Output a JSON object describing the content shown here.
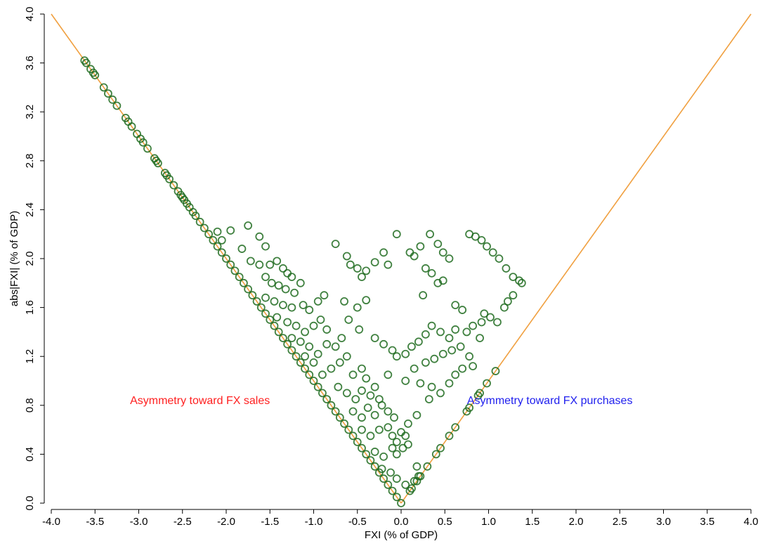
{
  "chart_data": {
    "type": "scatter",
    "xlabel": "FXI (% of GDP)",
    "ylabel": "abs|FXI| (% of GDP)",
    "xlim": [
      -4.0,
      4.0
    ],
    "ylim": [
      0.0,
      4.0
    ],
    "x_ticks": [
      "-4.0",
      "-3.5",
      "-3.0",
      "-2.5",
      "-2.0",
      "-1.5",
      "-1.0",
      "-0.5",
      "0.0",
      "0.5",
      "1.0",
      "1.5",
      "2.0",
      "2.5",
      "3.0",
      "3.5",
      "4.0"
    ],
    "y_ticks": [
      "0.0",
      "0.4",
      "0.8",
      "1.2",
      "1.6",
      "2.0",
      "2.4",
      "2.8",
      "3.2",
      "3.6",
      "4.0"
    ],
    "grid": false,
    "legend": "none",
    "marker_color": "#1f6b1f",
    "line_color": "#f0a040",
    "reference_lines": [
      {
        "x": [
          -4.0,
          0.0
        ],
        "y": [
          4.0,
          0.0
        ]
      },
      {
        "x": [
          0.0,
          4.0
        ],
        "y": [
          0.0,
          4.0
        ]
      }
    ],
    "annotations": [
      {
        "text": "Asymmetry toward FX sales",
        "x": -2.3,
        "y": 0.81,
        "color": "#ff2020"
      },
      {
        "text": "Asymmetry toward FX purchases",
        "x": 1.7,
        "y": 0.81,
        "color": "#2020ee"
      }
    ],
    "points": [
      [
        -3.62,
        3.62
      ],
      [
        -3.6,
        3.6
      ],
      [
        -3.55,
        3.55
      ],
      [
        -3.52,
        3.52
      ],
      [
        -3.5,
        3.5
      ],
      [
        -3.4,
        3.4
      ],
      [
        -3.35,
        3.35
      ],
      [
        -3.3,
        3.3
      ],
      [
        -3.25,
        3.25
      ],
      [
        -3.15,
        3.15
      ],
      [
        -3.12,
        3.12
      ],
      [
        -3.08,
        3.08
      ],
      [
        -3.02,
        3.02
      ],
      [
        -2.98,
        2.98
      ],
      [
        -2.95,
        2.95
      ],
      [
        -2.9,
        2.9
      ],
      [
        -2.82,
        2.82
      ],
      [
        -2.8,
        2.8
      ],
      [
        -2.78,
        2.78
      ],
      [
        -2.7,
        2.7
      ],
      [
        -2.68,
        2.68
      ],
      [
        -2.65,
        2.65
      ],
      [
        -2.6,
        2.6
      ],
      [
        -2.55,
        2.55
      ],
      [
        -2.52,
        2.52
      ],
      [
        -2.5,
        2.5
      ],
      [
        -2.48,
        2.48
      ],
      [
        -2.45,
        2.45
      ],
      [
        -2.42,
        2.42
      ],
      [
        -2.38,
        2.38
      ],
      [
        -2.35,
        2.35
      ],
      [
        -2.3,
        2.3
      ],
      [
        -2.25,
        2.25
      ],
      [
        -2.2,
        2.2
      ],
      [
        -2.15,
        2.15
      ],
      [
        -2.1,
        2.1
      ],
      [
        -2.05,
        2.05
      ],
      [
        -2.0,
        2.0
      ],
      [
        -1.95,
        1.95
      ],
      [
        -1.9,
        1.9
      ],
      [
        -1.85,
        1.85
      ],
      [
        -1.8,
        1.8
      ],
      [
        -1.75,
        1.75
      ],
      [
        -1.7,
        1.7
      ],
      [
        -1.65,
        1.65
      ],
      [
        -1.6,
        1.6
      ],
      [
        -1.55,
        1.55
      ],
      [
        -1.5,
        1.5
      ],
      [
        -1.45,
        1.45
      ],
      [
        -1.4,
        1.4
      ],
      [
        -1.35,
        1.35
      ],
      [
        -1.3,
        1.3
      ],
      [
        -1.25,
        1.25
      ],
      [
        -1.2,
        1.2
      ],
      [
        -1.15,
        1.15
      ],
      [
        -1.1,
        1.1
      ],
      [
        -1.05,
        1.05
      ],
      [
        -1.0,
        1.0
      ],
      [
        -0.95,
        0.95
      ],
      [
        -0.9,
        0.9
      ],
      [
        -0.85,
        0.85
      ],
      [
        -0.8,
        0.8
      ],
      [
        -0.75,
        0.75
      ],
      [
        -0.7,
        0.7
      ],
      [
        -0.65,
        0.65
      ],
      [
        -0.6,
        0.6
      ],
      [
        -0.55,
        0.55
      ],
      [
        -0.5,
        0.5
      ],
      [
        -0.45,
        0.45
      ],
      [
        -0.4,
        0.4
      ],
      [
        -0.35,
        0.35
      ],
      [
        -0.3,
        0.3
      ],
      [
        -0.25,
        0.25
      ],
      [
        -0.2,
        0.2
      ],
      [
        -0.15,
        0.15
      ],
      [
        -0.1,
        0.1
      ],
      [
        -0.05,
        0.05
      ],
      [
        0.0,
        0.0
      ],
      [
        -2.1,
        2.22
      ],
      [
        -2.05,
        2.15
      ],
      [
        -1.95,
        2.23
      ],
      [
        -1.75,
        2.27
      ],
      [
        -1.62,
        2.18
      ],
      [
        -1.55,
        2.1
      ],
      [
        -1.82,
        2.08
      ],
      [
        -1.72,
        1.98
      ],
      [
        -1.62,
        1.95
      ],
      [
        -1.5,
        1.95
      ],
      [
        -1.42,
        1.98
      ],
      [
        -1.35,
        1.92
      ],
      [
        -1.3,
        1.88
      ],
      [
        -1.25,
        1.85
      ],
      [
        -1.55,
        1.85
      ],
      [
        -1.48,
        1.8
      ],
      [
        -1.4,
        1.78
      ],
      [
        -1.32,
        1.75
      ],
      [
        -1.22,
        1.72
      ],
      [
        -1.15,
        1.8
      ],
      [
        -1.55,
        1.68
      ],
      [
        -1.45,
        1.65
      ],
      [
        -1.35,
        1.62
      ],
      [
        -1.25,
        1.6
      ],
      [
        -1.12,
        1.62
      ],
      [
        -1.05,
        1.58
      ],
      [
        -0.95,
        1.65
      ],
      [
        -0.88,
        1.7
      ],
      [
        -1.42,
        1.52
      ],
      [
        -1.3,
        1.48
      ],
      [
        -1.2,
        1.45
      ],
      [
        -1.1,
        1.4
      ],
      [
        -1.0,
        1.45
      ],
      [
        -0.92,
        1.5
      ],
      [
        -0.85,
        1.42
      ],
      [
        -1.25,
        1.35
      ],
      [
        -1.15,
        1.32
      ],
      [
        -1.05,
        1.28
      ],
      [
        -0.95,
        1.22
      ],
      [
        -0.85,
        1.3
      ],
      [
        -0.75,
        1.28
      ],
      [
        -0.68,
        1.35
      ],
      [
        -1.1,
        1.2
      ],
      [
        -1.0,
        1.15
      ],
      [
        -0.9,
        1.05
      ],
      [
        -0.8,
        1.1
      ],
      [
        -0.7,
        1.15
      ],
      [
        -0.62,
        1.2
      ],
      [
        -0.55,
        1.05
      ],
      [
        -0.45,
        1.1
      ],
      [
        -0.4,
        1.02
      ],
      [
        -0.72,
        0.95
      ],
      [
        -0.62,
        0.9
      ],
      [
        -0.52,
        0.85
      ],
      [
        -0.45,
        0.92
      ],
      [
        -0.35,
        0.88
      ],
      [
        -0.3,
        0.95
      ],
      [
        -0.25,
        0.85
      ],
      [
        -0.55,
        0.75
      ],
      [
        -0.45,
        0.7
      ],
      [
        -0.38,
        0.78
      ],
      [
        -0.3,
        0.72
      ],
      [
        -0.22,
        0.8
      ],
      [
        -0.15,
        0.75
      ],
      [
        -0.08,
        0.7
      ],
      [
        -0.45,
        0.6
      ],
      [
        -0.35,
        0.55
      ],
      [
        -0.25,
        0.6
      ],
      [
        -0.15,
        0.62
      ],
      [
        -0.1,
        0.55
      ],
      [
        -0.05,
        0.5
      ],
      [
        0.0,
        0.58
      ],
      [
        -0.3,
        0.42
      ],
      [
        -0.2,
        0.38
      ],
      [
        -0.1,
        0.45
      ],
      [
        -0.05,
        0.4
      ],
      [
        0.02,
        0.45
      ],
      [
        0.05,
        0.55
      ],
      [
        0.08,
        0.48
      ],
      [
        -0.22,
        0.28
      ],
      [
        -0.12,
        0.25
      ],
      [
        -0.05,
        0.2
      ],
      [
        0.05,
        0.15
      ],
      [
        0.1,
        0.1
      ],
      [
        0.15,
        0.18
      ],
      [
        0.18,
        0.3
      ],
      [
        0.2,
        0.22
      ],
      [
        -0.75,
        2.12
      ],
      [
        -0.62,
        2.02
      ],
      [
        -0.58,
        1.95
      ],
      [
        -0.5,
        1.92
      ],
      [
        -0.45,
        1.85
      ],
      [
        -0.4,
        1.9
      ],
      [
        -0.3,
        1.97
      ],
      [
        -0.2,
        2.05
      ],
      [
        -0.15,
        1.95
      ],
      [
        -0.05,
        2.2
      ],
      [
        0.1,
        2.05
      ],
      [
        0.15,
        2.02
      ],
      [
        0.22,
        2.1
      ],
      [
        0.28,
        1.92
      ],
      [
        0.33,
        2.2
      ],
      [
        0.42,
        2.12
      ],
      [
        0.48,
        2.05
      ],
      [
        0.55,
        2.0
      ],
      [
        0.35,
        1.88
      ],
      [
        0.42,
        1.8
      ],
      [
        0.48,
        1.82
      ],
      [
        0.25,
        1.7
      ],
      [
        -0.65,
        1.65
      ],
      [
        -0.5,
        1.6
      ],
      [
        -0.4,
        1.66
      ],
      [
        0.62,
        1.62
      ],
      [
        0.7,
        1.58
      ],
      [
        -0.6,
        1.5
      ],
      [
        -0.48,
        1.42
      ],
      [
        -0.3,
        1.35
      ],
      [
        -0.2,
        1.3
      ],
      [
        -0.1,
        1.25
      ],
      [
        -0.05,
        1.2
      ],
      [
        0.05,
        1.22
      ],
      [
        0.12,
        1.28
      ],
      [
        0.2,
        1.32
      ],
      [
        0.28,
        1.38
      ],
      [
        0.35,
        1.45
      ],
      [
        0.45,
        1.4
      ],
      [
        0.55,
        1.35
      ],
      [
        0.62,
        1.42
      ],
      [
        0.68,
        1.28
      ],
      [
        0.58,
        1.25
      ],
      [
        0.48,
        1.22
      ],
      [
        0.38,
        1.18
      ],
      [
        0.28,
        1.15
      ],
      [
        0.15,
        1.1
      ],
      [
        0.05,
        1.0
      ],
      [
        -0.15,
        1.05
      ],
      [
        0.22,
        0.98
      ],
      [
        0.35,
        0.95
      ],
      [
        0.45,
        0.9
      ],
      [
        0.55,
        0.98
      ],
      [
        0.62,
        1.05
      ],
      [
        0.7,
        1.1
      ],
      [
        0.78,
        1.2
      ],
      [
        0.82,
        1.12
      ],
      [
        0.32,
        0.85
      ],
      [
        0.18,
        0.72
      ],
      [
        0.08,
        0.65
      ],
      [
        0.78,
        2.2
      ],
      [
        0.85,
        2.18
      ],
      [
        0.92,
        2.15
      ],
      [
        0.98,
        2.1
      ],
      [
        1.05,
        2.05
      ],
      [
        1.12,
        2.0
      ],
      [
        1.2,
        1.92
      ],
      [
        1.28,
        1.85
      ],
      [
        1.35,
        1.82
      ],
      [
        1.38,
        1.8
      ],
      [
        0.95,
        1.55
      ],
      [
        1.02,
        1.52
      ],
      [
        1.1,
        1.48
      ],
      [
        1.18,
        1.6
      ],
      [
        1.22,
        1.65
      ],
      [
        1.28,
        1.7
      ],
      [
        0.9,
        1.35
      ],
      [
        0.75,
        1.4
      ],
      [
        0.82,
        1.45
      ],
      [
        0.92,
        1.48
      ],
      [
        0.3,
        0.3
      ],
      [
        0.4,
        0.4
      ],
      [
        0.45,
        0.45
      ],
      [
        0.55,
        0.55
      ],
      [
        0.62,
        0.62
      ],
      [
        0.75,
        0.75
      ],
      [
        0.78,
        0.78
      ],
      [
        0.88,
        0.88
      ],
      [
        0.9,
        0.9
      ],
      [
        0.98,
        0.98
      ],
      [
        1.08,
        1.08
      ],
      [
        0.22,
        0.22
      ],
      [
        0.18,
        0.18
      ],
      [
        0.12,
        0.12
      ]
    ]
  }
}
